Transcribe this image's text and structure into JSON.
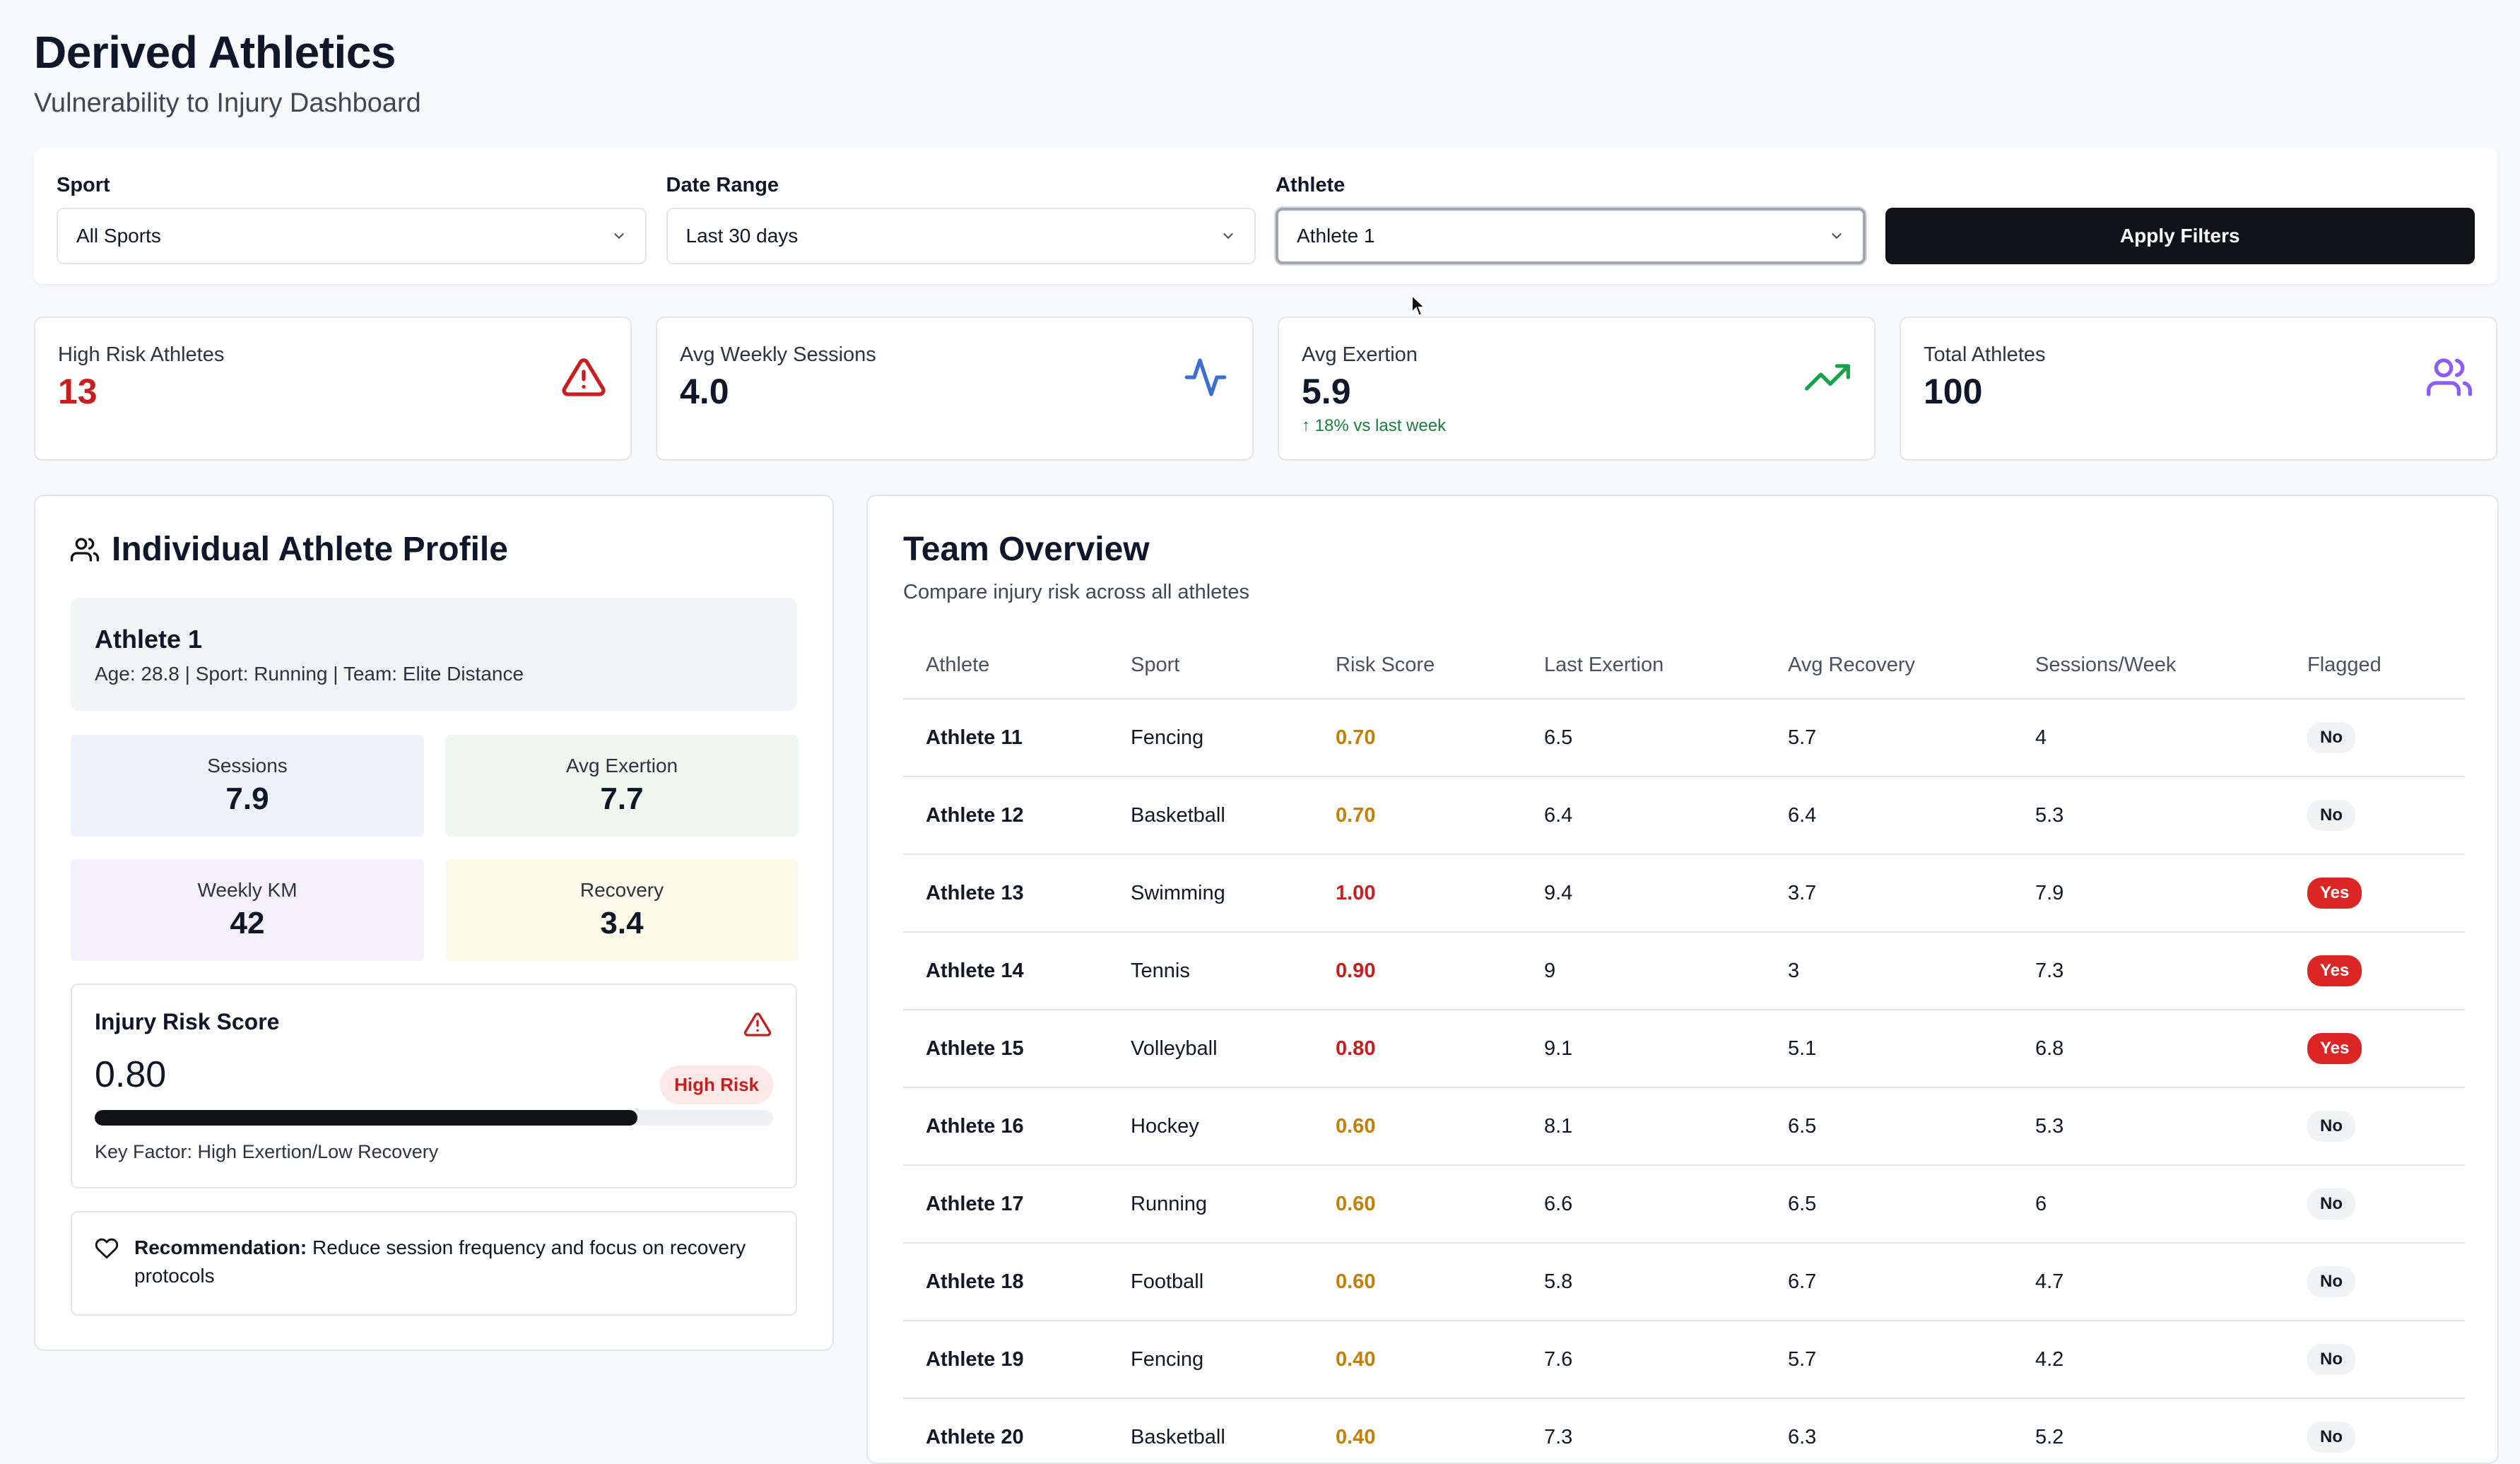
{
  "header": {
    "title": "Derived Athletics",
    "subtitle": "Vulnerability to Injury Dashboard"
  },
  "filters": {
    "sport": {
      "label": "Sport",
      "value": "All Sports"
    },
    "date_range": {
      "label": "Date Range",
      "value": "Last 30 days"
    },
    "athlete": {
      "label": "Athlete",
      "value": "Athlete 1"
    },
    "apply_label": "Apply Filters"
  },
  "stats": {
    "high_risk": {
      "label": "High Risk Athletes",
      "value": "13",
      "icon": "alert-triangle-icon"
    },
    "weekly_sessions": {
      "label": "Avg Weekly Sessions",
      "value": "4.0",
      "icon": "activity-icon"
    },
    "exertion": {
      "label": "Avg Exertion",
      "value": "5.9",
      "note": "18% vs last week",
      "icon": "trending-up-icon"
    },
    "total": {
      "label": "Total Athletes",
      "value": "100",
      "icon": "users-icon"
    }
  },
  "profile": {
    "title": "Individual Athlete Profile",
    "athlete_name": "Athlete 1",
    "athlete_meta": "Age: 28.8 | Sport: Running | Team: Elite Distance",
    "metrics": {
      "sessions": {
        "label": "Sessions",
        "value": "7.9"
      },
      "avg_exertion": {
        "label": "Avg Exertion",
        "value": "7.7"
      },
      "weekly_km": {
        "label": "Weekly KM",
        "value": "42"
      },
      "recovery": {
        "label": "Recovery",
        "value": "3.4"
      }
    },
    "risk": {
      "title": "Injury Risk Score",
      "score": "0.80",
      "level": "High Risk",
      "progress": 0.8,
      "key_factor": "Key Factor: High Exertion/Low Recovery"
    },
    "recommendation": {
      "label": "Recommendation:",
      "text": "Reduce session frequency and focus on recovery protocols"
    }
  },
  "team": {
    "title": "Team Overview",
    "subtitle": "Compare injury risk across all athletes",
    "columns": [
      "Athlete",
      "Sport",
      "Risk Score",
      "Last Exertion",
      "Avg Recovery",
      "Sessions/Week",
      "Flagged"
    ],
    "rows": [
      {
        "athlete": "Athlete 11",
        "sport": "Fencing",
        "risk": "0.70",
        "last_exertion": "6.5",
        "avg_recovery": "5.7",
        "sessions": "4",
        "flagged": "No"
      },
      {
        "athlete": "Athlete 12",
        "sport": "Basketball",
        "risk": "0.70",
        "last_exertion": "6.4",
        "avg_recovery": "6.4",
        "sessions": "5.3",
        "flagged": "No"
      },
      {
        "athlete": "Athlete 13",
        "sport": "Swimming",
        "risk": "1.00",
        "last_exertion": "9.4",
        "avg_recovery": "3.7",
        "sessions": "7.9",
        "flagged": "Yes"
      },
      {
        "athlete": "Athlete 14",
        "sport": "Tennis",
        "risk": "0.90",
        "last_exertion": "9",
        "avg_recovery": "3",
        "sessions": "7.3",
        "flagged": "Yes"
      },
      {
        "athlete": "Athlete 15",
        "sport": "Volleyball",
        "risk": "0.80",
        "last_exertion": "9.1",
        "avg_recovery": "5.1",
        "sessions": "6.8",
        "flagged": "Yes"
      },
      {
        "athlete": "Athlete 16",
        "sport": "Hockey",
        "risk": "0.60",
        "last_exertion": "8.1",
        "avg_recovery": "6.5",
        "sessions": "5.3",
        "flagged": "No"
      },
      {
        "athlete": "Athlete 17",
        "sport": "Running",
        "risk": "0.60",
        "last_exertion": "6.6",
        "avg_recovery": "6.5",
        "sessions": "6",
        "flagged": "No"
      },
      {
        "athlete": "Athlete 18",
        "sport": "Football",
        "risk": "0.60",
        "last_exertion": "5.8",
        "avg_recovery": "6.7",
        "sessions": "4.7",
        "flagged": "No"
      },
      {
        "athlete": "Athlete 19",
        "sport": "Fencing",
        "risk": "0.40",
        "last_exertion": "7.6",
        "avg_recovery": "5.7",
        "sessions": "4.2",
        "flagged": "No"
      },
      {
        "athlete": "Athlete 20",
        "sport": "Basketball",
        "risk": "0.40",
        "last_exertion": "7.3",
        "avg_recovery": "6.3",
        "sessions": "5.2",
        "flagged": "No"
      }
    ]
  },
  "colors": {
    "danger": "#c81e1e",
    "warning": "#c47f09",
    "success": "#16803c",
    "accent_blue": "#3b6fd4",
    "accent_purple": "#8b5cf6",
    "sessions_bg": "#eef2f9",
    "exertion_bg": "#eef8ef",
    "km_bg": "#f4f1fb",
    "recovery_bg": "#fcfbe9"
  }
}
